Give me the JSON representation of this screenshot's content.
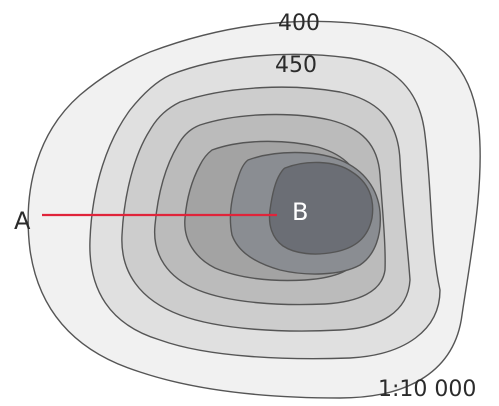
{
  "contour_labels": [
    "400",
    "450"
  ],
  "point_a": "A",
  "point_b": "B",
  "scale": "1:10 000",
  "colors": {
    "profile_line": "#e0243a",
    "contour_stroke": "#555555",
    "fills": [
      "#f1f1f1",
      "#e0e0e0",
      "#cdcdcd",
      "#bbbbbb",
      "#a3a3a3",
      "#8a8d92",
      "#6b6e75"
    ]
  }
}
